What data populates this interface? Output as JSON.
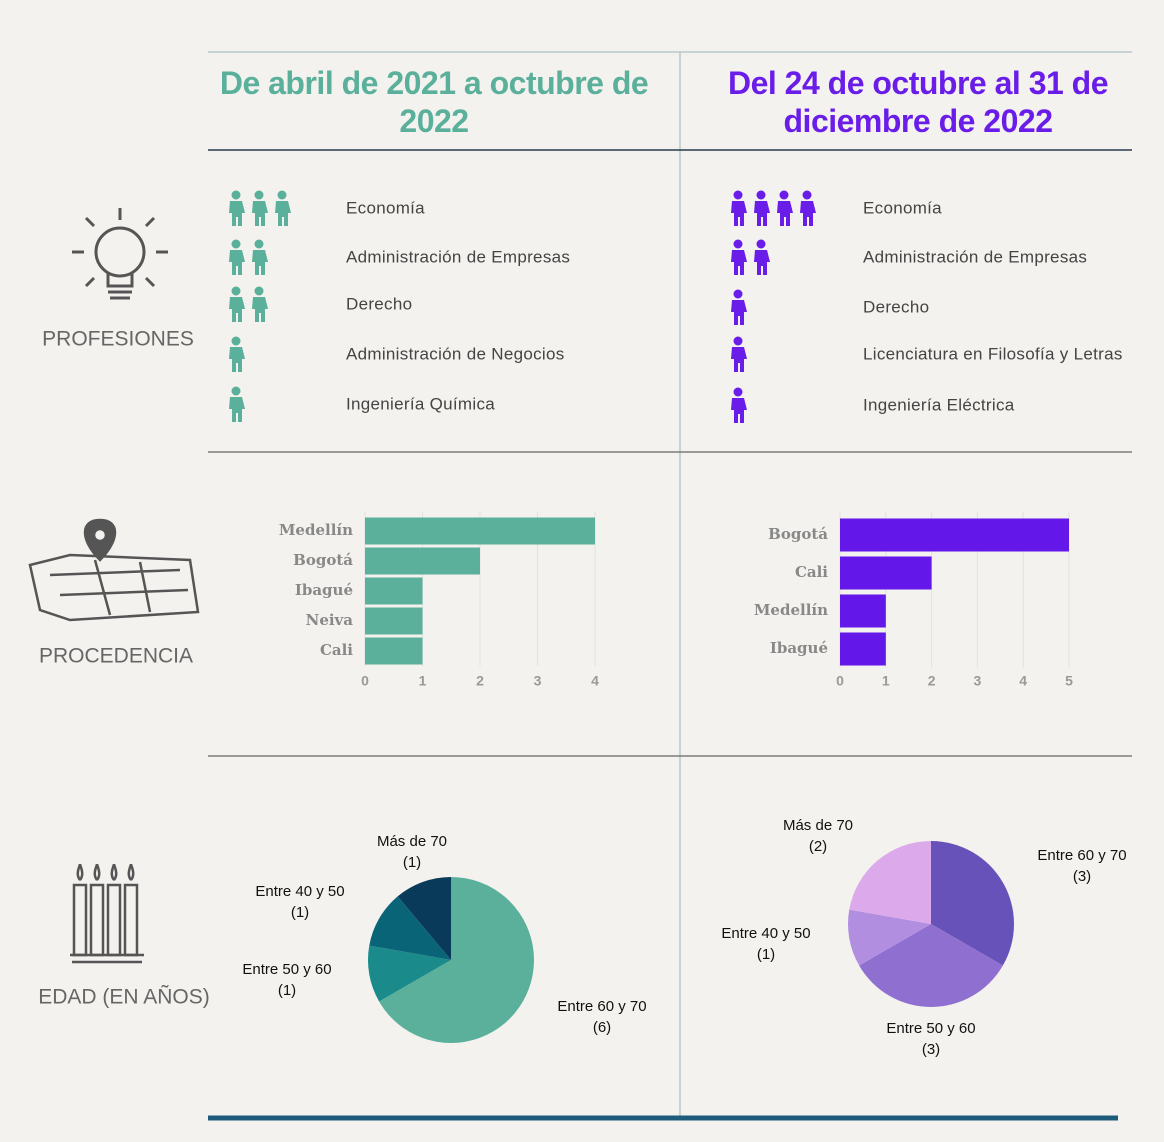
{
  "sections": [
    "PROFESIONES",
    "PROCEDENCIA",
    "EDAD (EN AÑOS)"
  ],
  "columns": [
    {
      "title": "De abril de 2021 a octubre de 2022",
      "color": "#5ab09a",
      "professions": [
        {
          "name": "Economía",
          "count": 3
        },
        {
          "name": "Administración de Empresas",
          "count": 2
        },
        {
          "name": "Derecho",
          "count": 2
        },
        {
          "name": "Administración de Negocios",
          "count": 1
        },
        {
          "name": "Ingeniería Química",
          "count": 1
        }
      ]
    },
    {
      "title": "Del 24 de octubre al 31 de diciembre de 2022",
      "color": "#6a1de8",
      "professions": [
        {
          "name": "Economía",
          "count": 4
        },
        {
          "name": "Administración de Empresas",
          "count": 2
        },
        {
          "name": "Derecho",
          "count": 1
        },
        {
          "name": "Licenciatura en Filosofía y Letras",
          "count": 1
        },
        {
          "name": "Ingeniería Eléctrica",
          "count": 1
        }
      ]
    }
  ],
  "chart_data": [
    {
      "type": "bar",
      "orientation": "horizontal",
      "categories": [
        "Medellín",
        "Bogotá",
        "Ibagué",
        "Neiva",
        "Cali"
      ],
      "values": [
        4,
        2,
        1,
        1,
        1
      ],
      "color": "#5ab09a",
      "xlim": [
        0,
        4
      ],
      "xticks": [
        0,
        1,
        2,
        3,
        4
      ],
      "grid": true
    },
    {
      "type": "bar",
      "orientation": "horizontal",
      "categories": [
        "Bogotá",
        "Cali",
        "Medellín",
        "Ibagué"
      ],
      "values": [
        5,
        2,
        1,
        1
      ],
      "color": "#6317e8",
      "xlim": [
        0,
        5
      ],
      "xticks": [
        0,
        1,
        2,
        3,
        4,
        5
      ],
      "grid": true
    },
    {
      "type": "pie",
      "categories": [
        "Entre 60 y 70",
        "Entre 50 y 60",
        "Entre 40 y 50",
        "Más de 70"
      ],
      "values": [
        6,
        1,
        1,
        1
      ],
      "value_labels": [
        "(6)",
        "(1)",
        "(1)",
        "(1)"
      ],
      "colors": [
        "#5ab09a",
        "#1a8a8a",
        "#0a6478",
        "#0a3a5a"
      ]
    },
    {
      "type": "pie",
      "categories": [
        "Entre 60 y 70",
        "Entre 50 y 60",
        "Entre 40 y 50",
        "Más de 70"
      ],
      "values": [
        3,
        3,
        1,
        2
      ],
      "value_labels": [
        "(3)",
        "(3)",
        "(1)",
        "(2)"
      ],
      "colors": [
        "#6652b8",
        "#8f6fd0",
        "#b28ee0",
        "#dcaaea"
      ]
    }
  ]
}
